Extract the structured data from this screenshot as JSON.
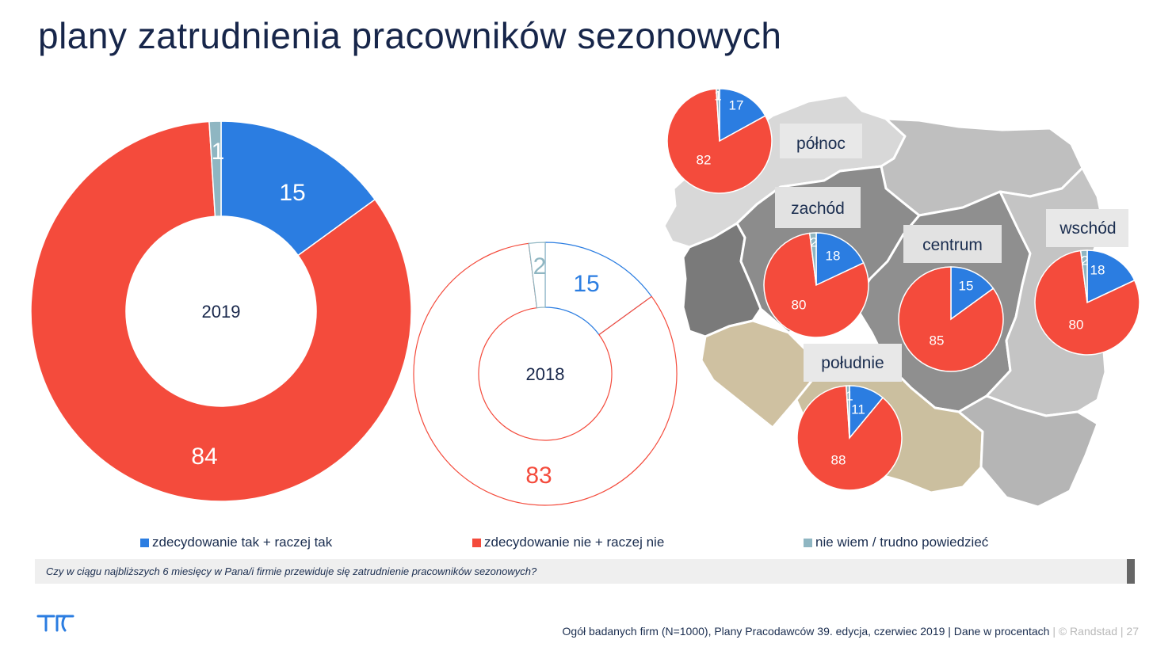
{
  "title": "plany zatrudnienia pracowników sezonowych",
  "colors": {
    "yes": "#2b7de1",
    "no": "#f44b3c",
    "dontknow": "#8fb6c2",
    "navy": "#17264a"
  },
  "chart_data": [
    {
      "type": "pie",
      "label": "2019",
      "style": "donut-filled",
      "slices": [
        {
          "key": "yes",
          "value": 15
        },
        {
          "key": "no",
          "value": 84
        },
        {
          "key": "dontknow",
          "value": 1
        }
      ]
    },
    {
      "type": "pie",
      "label": "2018",
      "style": "donut-outline",
      "slices": [
        {
          "key": "yes",
          "value": 15
        },
        {
          "key": "no",
          "value": 83
        },
        {
          "key": "dontknow",
          "value": 2
        }
      ]
    },
    {
      "type": "pie",
      "region": "północ",
      "slices": [
        {
          "key": "yes",
          "value": 17
        },
        {
          "key": "no",
          "value": 82
        },
        {
          "key": "dontknow",
          "value": 1
        }
      ]
    },
    {
      "type": "pie",
      "region": "zachód",
      "slices": [
        {
          "key": "yes",
          "value": 18
        },
        {
          "key": "no",
          "value": 80
        },
        {
          "key": "dontknow",
          "value": 2
        }
      ]
    },
    {
      "type": "pie",
      "region": "centrum",
      "slices": [
        {
          "key": "yes",
          "value": 15
        },
        {
          "key": "no",
          "value": 85
        },
        {
          "key": "dontknow",
          "value": 0
        }
      ]
    },
    {
      "type": "pie",
      "region": "wschód",
      "slices": [
        {
          "key": "yes",
          "value": 18
        },
        {
          "key": "no",
          "value": 80
        },
        {
          "key": "dontknow",
          "value": 2
        }
      ]
    },
    {
      "type": "pie",
      "region": "południe",
      "slices": [
        {
          "key": "yes",
          "value": 11
        },
        {
          "key": "no",
          "value": 88
        },
        {
          "key": "dontknow",
          "value": 1
        }
      ]
    }
  ],
  "legend": [
    {
      "key": "yes",
      "label": "zdecydowanie tak + raczej tak"
    },
    {
      "key": "no",
      "label": "zdecydowanie nie + raczej nie"
    },
    {
      "key": "dontknow",
      "label": "nie wiem / trudno powiedzieć"
    }
  ],
  "question": "Czy w ciągu najbliższych 6 miesięcy w Pana/i firmie przewiduje się zatrudnienie pracowników sezonowych?",
  "footer": {
    "source": "Ogół badanych firm (N=1000), Plany Pracodawców 39. edycja, czerwiec 2019",
    "units": "| Dane w procentach",
    "brand": "| © Randstad |",
    "page": "27"
  }
}
